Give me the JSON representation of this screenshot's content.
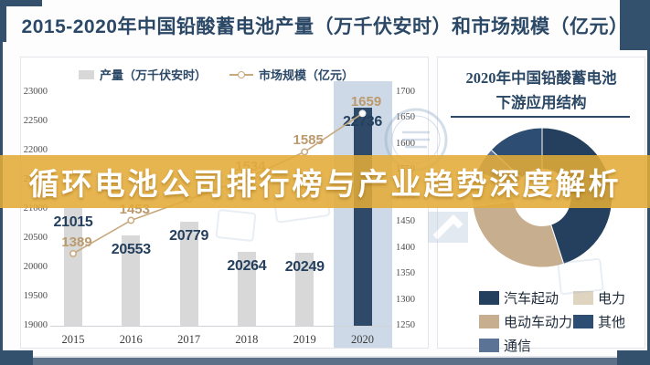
{
  "page": {
    "title": "2015-2020年中国铅酸蓄电池产量（万千伏安时）和市场规模（亿元）",
    "banner_text": "循环电池公司排行榜与产业趋势深度解析",
    "accent_gold": "#e3ab38",
    "frame_navy": "#33506d"
  },
  "left_chart": {
    "legend": [
      {
        "label": "产量（万千伏安时）",
        "marker": "bar-swatch",
        "color": "#d8d8d8"
      },
      {
        "label": "市场规模（亿元）",
        "marker": "line-marker",
        "color": "#c8a87c"
      }
    ]
  },
  "right_chart": {
    "title_line1": "2020年中国铅酸蓄电池",
    "title_line2": "下游应用结构",
    "legend": [
      {
        "label": "汽车起动",
        "color": "#24405e"
      },
      {
        "label": "电力",
        "color": "#ded4bf"
      },
      {
        "label": "电动车动力",
        "color": "#c6ae8e"
      },
      {
        "label": "其他",
        "color": "#2e4d72"
      },
      {
        "label": "通信",
        "color": "#5b7394"
      }
    ]
  },
  "chart_data": [
    {
      "type": "bar",
      "title": "2015-2020年中国铅酸蓄电池产量（万千伏安时）和市场规模（亿元）",
      "categories": [
        "2015",
        "2016",
        "2017",
        "2018",
        "2019",
        "2020"
      ],
      "series": [
        {
          "name": "产量（万千伏安时）",
          "type": "bar",
          "axis": "left",
          "values": [
            21015,
            20553,
            20779,
            20264,
            20249,
            22736
          ],
          "colors": [
            "#d8d8d8",
            "#d8d8d8",
            "#d8d8d8",
            "#d8d8d8",
            "#d8d8d8",
            "#2e4a68"
          ]
        },
        {
          "name": "市场规模（亿元）",
          "type": "line",
          "axis": "right",
          "values": [
            1389,
            1453,
            null,
            1534,
            1585,
            1659
          ],
          "color": "#c8a87c",
          "note": "2017 marker and data label hidden behind overlay banner"
        }
      ],
      "left_axis": {
        "range": [
          19000,
          23000
        ],
        "tick_step": 500
      },
      "right_axis": {
        "range": [
          1250,
          1700
        ],
        "tick_step": 50
      },
      "highlight_category": "2020",
      "highlight_band_color": "#cdd9e7",
      "gridlines": false,
      "legend_position": "top"
    },
    {
      "type": "pie",
      "title": "2020年中国铅酸蓄电池下游应用结构",
      "donut": true,
      "start_angle_deg": 0,
      "direction": "clockwise",
      "labels": [
        "汽车起动",
        "电动车动力",
        "电力",
        "通信",
        "其他"
      ],
      "values": [
        45,
        28,
        8,
        6,
        13
      ],
      "colors": [
        "#24405e",
        "#c6ae8e",
        "#ded4bf",
        "#5b7394",
        "#2e4d72"
      ],
      "pct_labels": [
        "45%",
        "28%",
        "8%",
        "6%",
        "13%"
      ],
      "pct_label_visible": [
        true,
        true,
        false,
        true,
        true
      ],
      "pct_label_colors": [
        "#ececea",
        "#1f3550",
        "#ffffff",
        "#f2f0ec",
        "#ffffff"
      ],
      "legend_position": "bottom"
    }
  ],
  "decorations": [
    "circular-stamp-watermark",
    "lineart-box-watermark",
    "arrow-watermark"
  ]
}
